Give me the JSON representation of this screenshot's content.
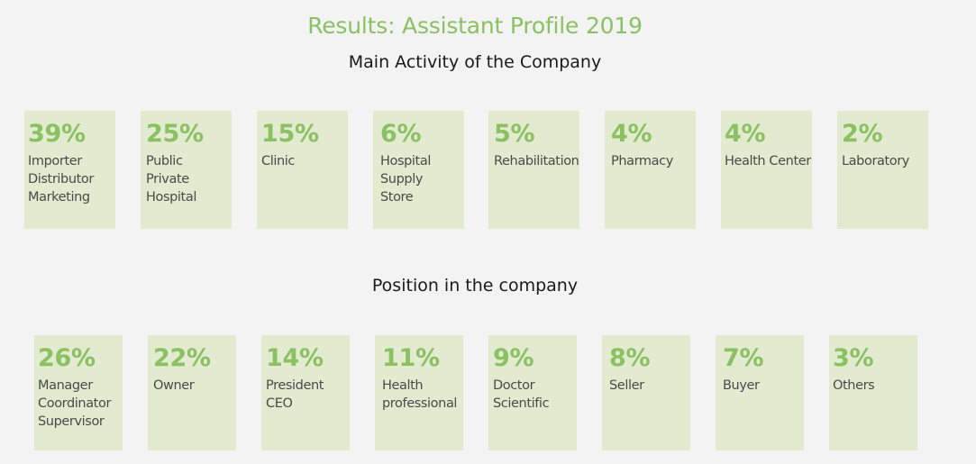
{
  "title": "Results: Assistant Profile 2019",
  "section1": {
    "heading": "Main Activity of the Company",
    "cards": [
      {
        "percent": "39%",
        "label": "Importer\nDistributor\nMarketing"
      },
      {
        "percent": "25%",
        "label": "Public\nPrivate\nHospital"
      },
      {
        "percent": "15%",
        "label": "Clinic"
      },
      {
        "percent": "6%",
        "label": "Hospital\nSupply\nStore"
      },
      {
        "percent": "5%",
        "label": "Rehabilitation"
      },
      {
        "percent": "4%",
        "label": "Pharmacy"
      },
      {
        "percent": "4%",
        "label": "Health Center"
      },
      {
        "percent": "2%",
        "label": "Laboratory"
      }
    ]
  },
  "section2": {
    "heading": "Position in the company",
    "cards": [
      {
        "percent": "26%",
        "label": "Manager\nCoordinator\nSupervisor"
      },
      {
        "percent": "22%",
        "label": "Owner"
      },
      {
        "percent": "14%",
        "label": "President\nCEO"
      },
      {
        "percent": "11%",
        "label": "Health\nprofessional"
      },
      {
        "percent": "9%",
        "label": "Doctor\nScientific"
      },
      {
        "percent": "8%",
        "label": "Seller"
      },
      {
        "percent": "7%",
        "label": "Buyer"
      },
      {
        "percent": "3%",
        "label": "Others"
      }
    ]
  },
  "colors": {
    "accent_green": "#8bc063",
    "card_background": "#e2eacf",
    "page_background": "#f3f3f3"
  }
}
